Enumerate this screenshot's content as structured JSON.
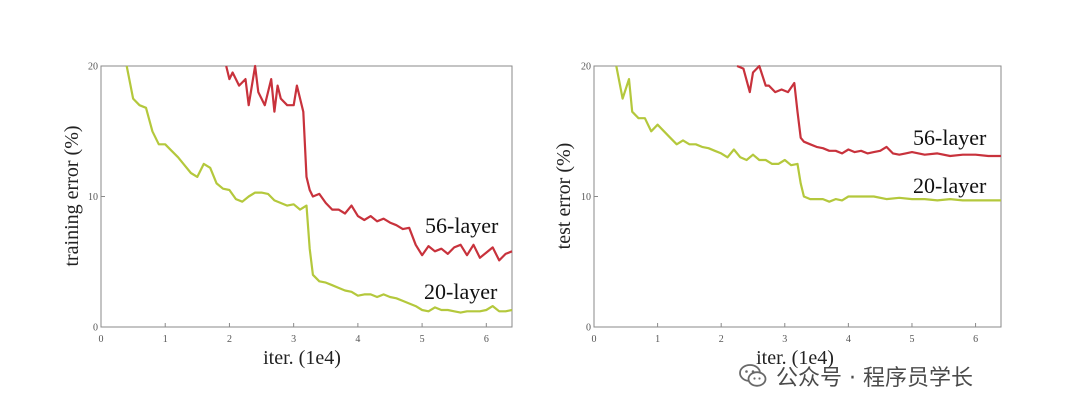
{
  "chart_data": [
    {
      "type": "line",
      "ylabel": "training error (%)",
      "xlabel": "iter. (1e4)",
      "xlim": [
        0,
        6.4
      ],
      "ylim": [
        0,
        20
      ],
      "xticks": [
        "0",
        "1",
        "2",
        "3",
        "4",
        "5",
        "6"
      ],
      "yticks": [
        "0",
        "10",
        "20"
      ],
      "series": [
        {
          "name": "56-layer",
          "color": "#c8323c",
          "x": [
            1.95,
            2.0,
            2.05,
            2.15,
            2.25,
            2.3,
            2.4,
            2.45,
            2.55,
            2.65,
            2.7,
            2.75,
            2.8,
            2.9,
            3.0,
            3.05,
            3.15,
            3.2,
            3.25,
            3.3,
            3.4,
            3.5,
            3.6,
            3.7,
            3.8,
            3.9,
            4.0,
            4.1,
            4.2,
            4.3,
            4.4,
            4.5,
            4.6,
            4.7,
            4.8,
            4.9,
            5.0,
            5.1,
            5.2,
            5.3,
            5.4,
            5.5,
            5.6,
            5.7,
            5.8,
            5.9,
            6.0,
            6.1,
            6.2,
            6.3,
            6.4
          ],
          "y": [
            20,
            19,
            19.5,
            18.5,
            19,
            17,
            20,
            18,
            17,
            19,
            16.5,
            18.5,
            17.5,
            17,
            17,
            18.5,
            16.5,
            11.5,
            10.5,
            10,
            10.2,
            9.5,
            9.0,
            9.0,
            8.7,
            9.3,
            8.5,
            8.2,
            8.5,
            8.1,
            8.3,
            8.0,
            7.8,
            7.5,
            7.6,
            6.3,
            5.5,
            6.2,
            5.8,
            6.0,
            5.6,
            6.1,
            6.3,
            5.5,
            6.3,
            5.3,
            5.7,
            6.1,
            5.1,
            5.6,
            5.8
          ]
        },
        {
          "name": "20-layer",
          "color": "#b4c83c",
          "x": [
            0.4,
            0.5,
            0.6,
            0.7,
            0.8,
            0.9,
            1.0,
            1.1,
            1.2,
            1.3,
            1.4,
            1.5,
            1.6,
            1.7,
            1.8,
            1.9,
            2.0,
            2.1,
            2.2,
            2.3,
            2.4,
            2.5,
            2.6,
            2.7,
            2.8,
            2.9,
            3.0,
            3.1,
            3.2,
            3.25,
            3.3,
            3.4,
            3.5,
            3.6,
            3.7,
            3.8,
            3.9,
            4.0,
            4.1,
            4.2,
            4.3,
            4.4,
            4.5,
            4.6,
            4.7,
            4.8,
            4.9,
            5.0,
            5.1,
            5.2,
            5.3,
            5.4,
            5.5,
            5.6,
            5.7,
            5.8,
            5.9,
            6.0,
            6.1,
            6.2,
            6.3,
            6.4
          ],
          "y": [
            20,
            17.5,
            17.0,
            16.8,
            15.0,
            14.0,
            14.0,
            13.5,
            13.0,
            12.4,
            11.8,
            11.5,
            12.5,
            12.2,
            11.0,
            10.6,
            10.5,
            9.8,
            9.6,
            10.0,
            10.3,
            10.3,
            10.2,
            9.7,
            9.5,
            9.3,
            9.4,
            9.0,
            9.3,
            6.0,
            4.0,
            3.5,
            3.4,
            3.2,
            3.0,
            2.8,
            2.7,
            2.4,
            2.5,
            2.5,
            2.3,
            2.5,
            2.3,
            2.2,
            2.0,
            1.8,
            1.6,
            1.3,
            1.2,
            1.5,
            1.3,
            1.3,
            1.2,
            1.1,
            1.2,
            1.2,
            1.2,
            1.3,
            1.6,
            1.2,
            1.2,
            1.3
          ]
        }
      ]
    },
    {
      "type": "line",
      "ylabel": "test error (%)",
      "xlabel": "iter. (1e4)",
      "xlim": [
        0,
        6.4
      ],
      "ylim": [
        0,
        20
      ],
      "xticks": [
        "0",
        "1",
        "2",
        "3",
        "4",
        "5",
        "6"
      ],
      "yticks": [
        "0",
        "10",
        "20"
      ],
      "series": [
        {
          "name": "56-layer",
          "color": "#c8323c",
          "x": [
            2.25,
            2.35,
            2.45,
            2.5,
            2.6,
            2.7,
            2.75,
            2.85,
            2.95,
            3.05,
            3.15,
            3.2,
            3.25,
            3.3,
            3.4,
            3.5,
            3.6,
            3.7,
            3.8,
            3.9,
            4.0,
            4.1,
            4.2,
            4.3,
            4.4,
            4.5,
            4.6,
            4.7,
            4.8,
            4.9,
            5.0,
            5.2,
            5.4,
            5.6,
            5.8,
            6.0,
            6.2,
            6.4
          ],
          "y": [
            20,
            19.8,
            18.0,
            19.5,
            20,
            18.5,
            18.5,
            18.0,
            18.2,
            18.0,
            18.7,
            16.5,
            14.5,
            14.2,
            14.0,
            13.8,
            13.7,
            13.5,
            13.5,
            13.3,
            13.6,
            13.4,
            13.5,
            13.3,
            13.4,
            13.5,
            13.8,
            13.3,
            13.2,
            13.3,
            13.4,
            13.2,
            13.3,
            13.1,
            13.2,
            13.2,
            13.1,
            13.1
          ]
        },
        {
          "name": "20-layer",
          "color": "#b4c83c",
          "x": [
            0.35,
            0.45,
            0.55,
            0.6,
            0.7,
            0.8,
            0.9,
            1.0,
            1.1,
            1.2,
            1.3,
            1.4,
            1.5,
            1.6,
            1.7,
            1.8,
            1.9,
            2.0,
            2.1,
            2.2,
            2.3,
            2.4,
            2.5,
            2.6,
            2.7,
            2.8,
            2.9,
            3.0,
            3.1,
            3.2,
            3.25,
            3.3,
            3.4,
            3.5,
            3.6,
            3.7,
            3.8,
            3.9,
            4.0,
            4.2,
            4.4,
            4.6,
            4.8,
            5.0,
            5.2,
            5.4,
            5.6,
            5.8,
            6.0,
            6.2,
            6.4
          ],
          "y": [
            20,
            17.5,
            19.0,
            16.5,
            16.0,
            16.0,
            15.0,
            15.5,
            15.0,
            14.5,
            14.0,
            14.3,
            14.0,
            14.0,
            13.8,
            13.7,
            13.5,
            13.3,
            13.0,
            13.6,
            13.0,
            12.8,
            13.2,
            12.8,
            12.8,
            12.5,
            12.5,
            12.8,
            12.4,
            12.5,
            11.0,
            10.0,
            9.8,
            9.8,
            9.8,
            9.6,
            9.8,
            9.7,
            10.0,
            10.0,
            10.0,
            9.8,
            9.9,
            9.8,
            9.8,
            9.7,
            9.8,
            9.7,
            9.7,
            9.7,
            9.7
          ]
        }
      ]
    }
  ],
  "watermark": {
    "text": "公众号 · 程序员学长",
    "icon": "wechat-icon"
  }
}
